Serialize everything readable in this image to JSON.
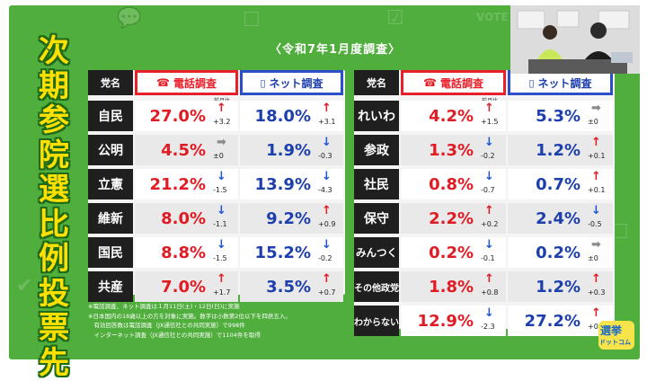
{
  "side_title": [
    "次",
    "期",
    "参",
    "院",
    "選",
    "比",
    "例",
    "投",
    "票",
    "先"
  ],
  "survey_date": "〈令和7年1月度調査〉",
  "headers": {
    "party": "党名",
    "phone": "電話調査",
    "net": "ネット調査",
    "prev_label": "前月比"
  },
  "left_rows": [
    {
      "party": "自民",
      "phone": "27.0%",
      "phone_arrow": "↑",
      "phone_dir": "up",
      "phone_diff": "+3.2",
      "net": "18.0%",
      "net_arrow": "↑",
      "net_dir": "up",
      "net_diff": "+3.1"
    },
    {
      "party": "公明",
      "phone": "4.5%",
      "phone_arrow": "➡",
      "phone_dir": "flat",
      "phone_diff": "±0",
      "net": "1.9%",
      "net_arrow": "↓",
      "net_dir": "down",
      "net_diff": "-0.3"
    },
    {
      "party": "立憲",
      "phone": "21.2%",
      "phone_arrow": "↓",
      "phone_dir": "down",
      "phone_diff": "-1.5",
      "net": "13.9%",
      "net_arrow": "↓",
      "net_dir": "down",
      "net_diff": "-4.3"
    },
    {
      "party": "維新",
      "phone": "8.0%",
      "phone_arrow": "↓",
      "phone_dir": "down",
      "phone_diff": "-1.1",
      "net": "9.2%",
      "net_arrow": "↑",
      "net_dir": "up",
      "net_diff": "+0.9"
    },
    {
      "party": "国民",
      "phone": "8.8%",
      "phone_arrow": "↓",
      "phone_dir": "down",
      "phone_diff": "-1.5",
      "net": "15.2%",
      "net_arrow": "↓",
      "net_dir": "down",
      "net_diff": "-0.2"
    },
    {
      "party": "共産",
      "phone": "7.0%",
      "phone_arrow": "↑",
      "phone_dir": "up",
      "phone_diff": "+1.7",
      "net": "3.5%",
      "net_arrow": "↑",
      "net_dir": "up",
      "net_diff": "+0.7"
    }
  ],
  "right_rows": [
    {
      "party": "れいわ",
      "phone": "4.2%",
      "phone_arrow": "↑",
      "phone_dir": "up",
      "phone_diff": "+1.5",
      "net": "5.3%",
      "net_arrow": "➡",
      "net_dir": "flat",
      "net_diff": "±0"
    },
    {
      "party": "参政",
      "phone": "1.3%",
      "phone_arrow": "↓",
      "phone_dir": "down",
      "phone_diff": "-0.2",
      "net": "1.2%",
      "net_arrow": "↑",
      "net_dir": "up",
      "net_diff": "+0.1"
    },
    {
      "party": "社民",
      "phone": "0.8%",
      "phone_arrow": "↓",
      "phone_dir": "down",
      "phone_diff": "-0.7",
      "net": "0.7%",
      "net_arrow": "↑",
      "net_dir": "up",
      "net_diff": "+0.1"
    },
    {
      "party": "保守",
      "phone": "2.2%",
      "phone_arrow": "↑",
      "phone_dir": "up",
      "phone_diff": "+0.2",
      "net": "2.4%",
      "net_arrow": "↓",
      "net_dir": "down",
      "net_diff": "-0.5"
    },
    {
      "party": "みんつく",
      "phone": "0.2%",
      "phone_arrow": "↓",
      "phone_dir": "down",
      "phone_diff": "-0.1",
      "net": "0.2%",
      "net_arrow": "➡",
      "net_dir": "flat",
      "net_diff": "±0"
    },
    {
      "party": "その他政党",
      "phone": "1.8%",
      "phone_arrow": "↑",
      "phone_dir": "up",
      "phone_diff": "+0.8",
      "net": "1.2%",
      "net_arrow": "↑",
      "net_dir": "up",
      "net_diff": "+0.3"
    },
    {
      "party": "わからない",
      "phone": "12.9%",
      "phone_arrow": "↓",
      "phone_dir": "down",
      "phone_diff": "-2.3",
      "net": "27.2%",
      "net_arrow": "↑",
      "net_dir": "up",
      "net_diff": "+0.1"
    }
  ],
  "notes": [
    "※電話調査、ネット調査は１月11日(土)・12日(日)に実施",
    "※日本国内の18歳以上の方を対象に実施。数字は小数第2位以下を四捨五入。",
    "　有効回答数は電話調査（JX通信社との共同実施）で998件",
    "　インターネット調査（JX通信社との共同実施）で1104件を取得"
  ],
  "logo": {
    "line1": "選挙",
    "line2": "ドットコム"
  },
  "colors": {
    "background": "#4fae3c",
    "title": "#ffe000",
    "phone": "#e01b24",
    "net": "#1d3fae",
    "up": "#e01b24",
    "down": "#1d56d8",
    "flat": "#8a8a8a"
  }
}
